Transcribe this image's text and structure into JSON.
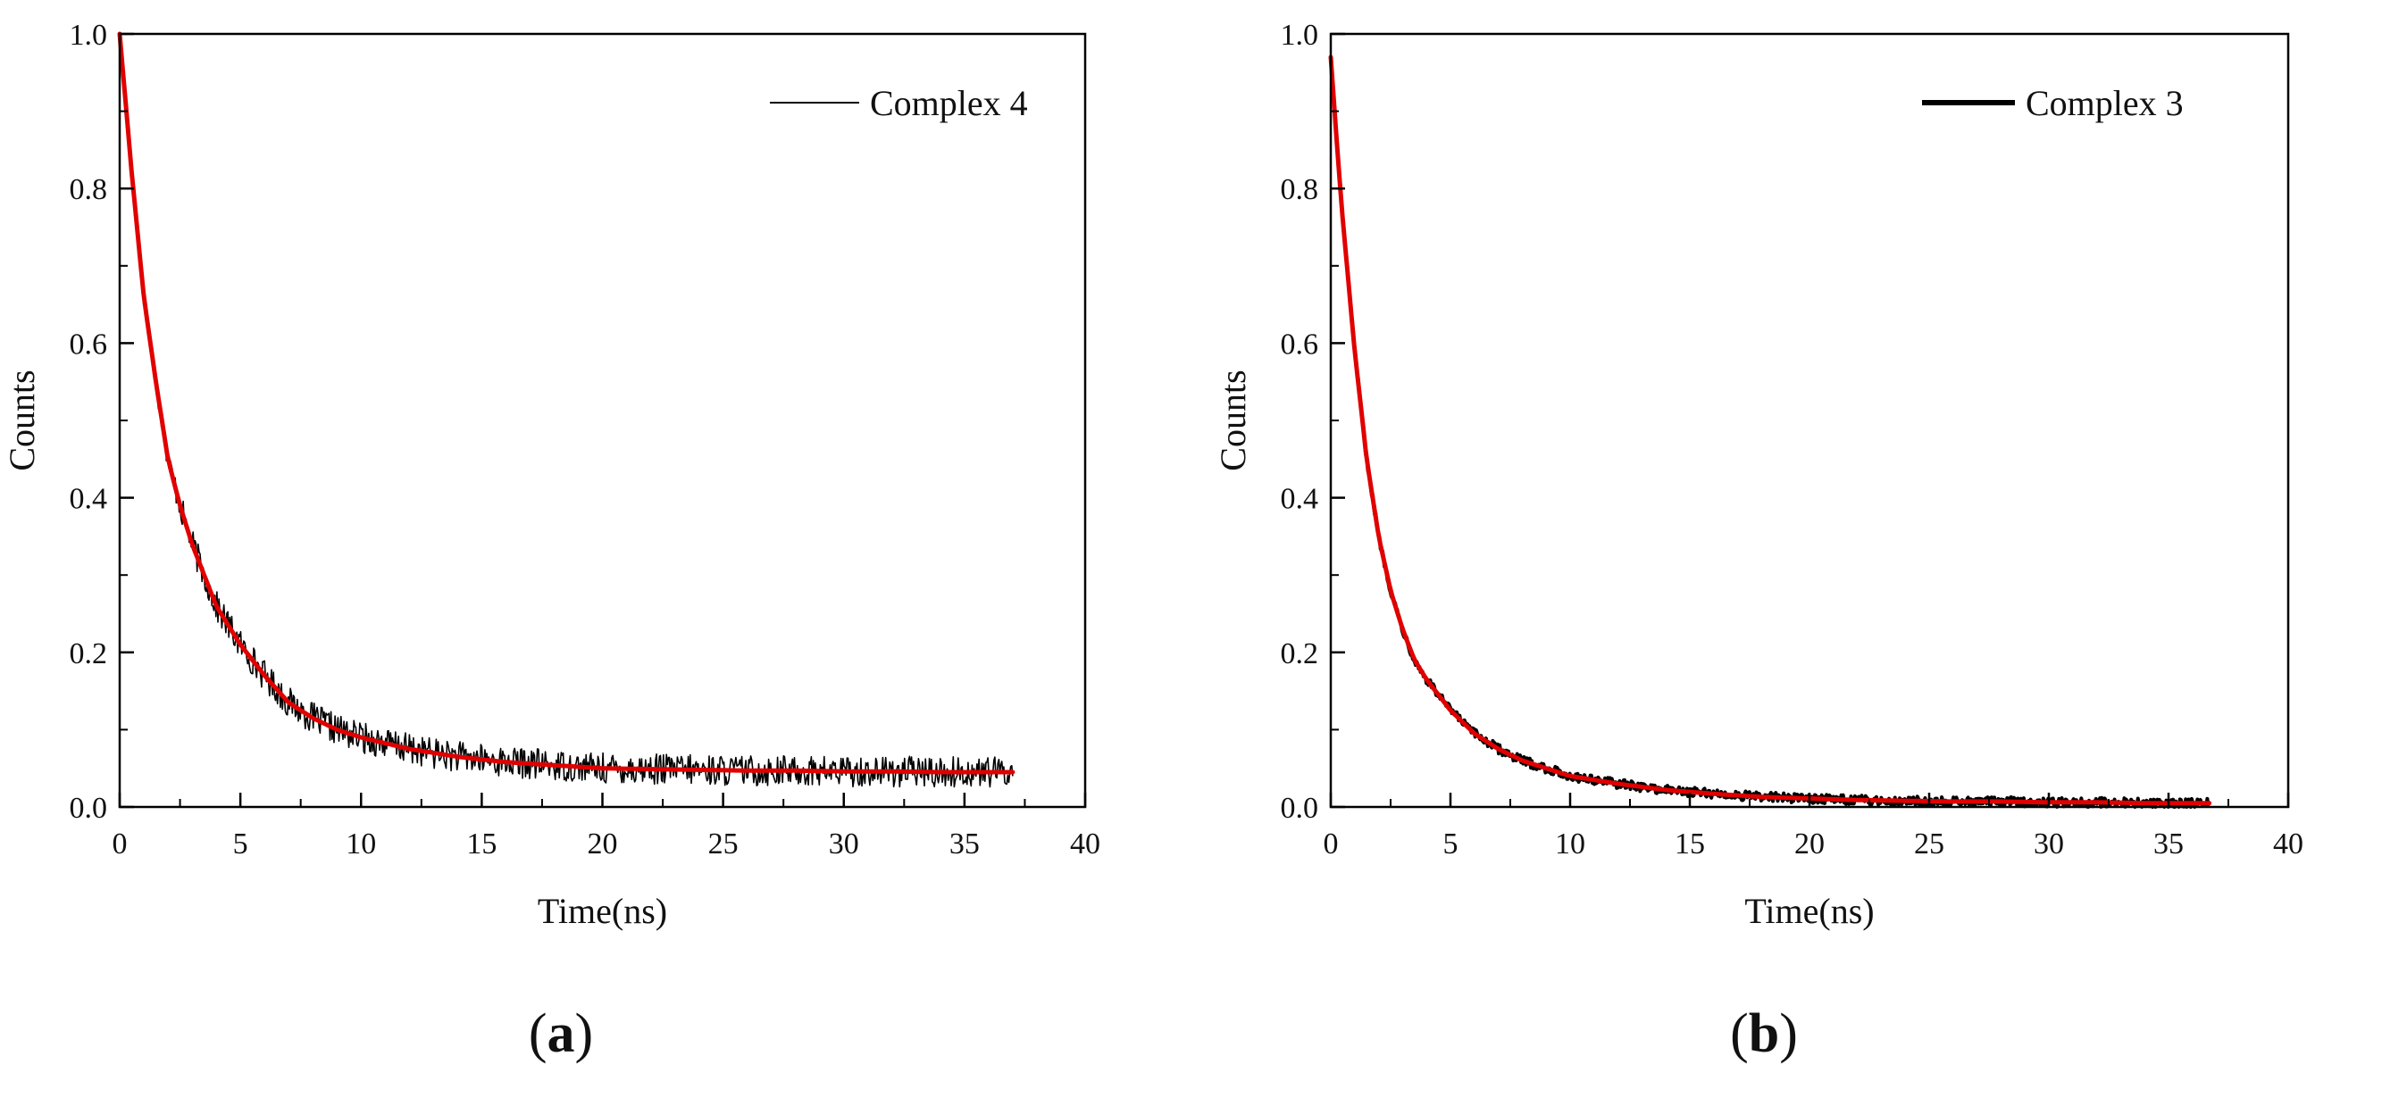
{
  "figure": {
    "colors": {
      "data": "#000000",
      "fit": "#e00000",
      "axes": "#000000"
    }
  },
  "chart_data": [
    {
      "type": "line",
      "panel_label": "a",
      "xlabel": "Time(ns)",
      "ylabel": "Counts",
      "xlim": [
        0,
        40
      ],
      "ylim": [
        0,
        1.0
      ],
      "xticks": [
        "0",
        "5",
        "10",
        "15",
        "20",
        "25",
        "30",
        "35",
        "40"
      ],
      "yticks": [
        "0.0",
        "0.2",
        "0.4",
        "0.6",
        "0.8",
        "1.0"
      ],
      "legend": {
        "position": "top-right",
        "entries": [
          "Complex 4"
        ]
      },
      "grid": false,
      "series": [
        {
          "name": "Complex 4",
          "kind": "measured",
          "x": [
            0,
            0.5,
            1,
            1.5,
            2,
            2.5,
            3,
            3.5,
            4,
            5,
            6,
            7,
            8,
            9,
            10,
            12,
            14,
            16,
            18,
            20,
            22,
            24,
            26,
            28,
            30,
            32,
            34,
            36,
            37
          ],
          "y": [
            1.0,
            0.82,
            0.66,
            0.55,
            0.45,
            0.39,
            0.34,
            0.3,
            0.26,
            0.21,
            0.17,
            0.135,
            0.115,
            0.1,
            0.09,
            0.075,
            0.065,
            0.058,
            0.054,
            0.05,
            0.049,
            0.048,
            0.047,
            0.047,
            0.046,
            0.046,
            0.045,
            0.045,
            0.045
          ],
          "noise": 0.02
        },
        {
          "kind": "fit",
          "x": [
            0,
            0.5,
            1,
            1.5,
            2,
            2.5,
            3,
            3.5,
            4,
            5,
            6,
            7,
            8,
            9,
            10,
            12,
            14,
            16,
            18,
            20,
            22,
            24,
            26,
            28,
            30,
            32,
            34,
            36,
            37
          ],
          "y": [
            1.0,
            0.82,
            0.66,
            0.55,
            0.45,
            0.39,
            0.34,
            0.3,
            0.26,
            0.21,
            0.17,
            0.135,
            0.115,
            0.1,
            0.09,
            0.075,
            0.065,
            0.058,
            0.054,
            0.05,
            0.049,
            0.048,
            0.047,
            0.047,
            0.046,
            0.046,
            0.045,
            0.045,
            0.045
          ]
        }
      ]
    },
    {
      "type": "line",
      "panel_label": "b",
      "xlabel": "Time(ns)",
      "ylabel": "Counts",
      "xlim": [
        0,
        40
      ],
      "ylim": [
        0,
        1.0
      ],
      "xticks": [
        "0",
        "5",
        "10",
        "15",
        "20",
        "25",
        "30",
        "35",
        "40"
      ],
      "yticks": [
        "0.0",
        "0.2",
        "0.4",
        "0.6",
        "0.8",
        "1.0"
      ],
      "legend": {
        "position": "top-right",
        "entries": [
          "Complex 3"
        ]
      },
      "grid": false,
      "series": [
        {
          "name": "Complex 3",
          "kind": "measured",
          "x": [
            0,
            0.25,
            0.5,
            1,
            1.5,
            2,
            2.5,
            3,
            3.5,
            4,
            5,
            6,
            7,
            8,
            9,
            10,
            12,
            14,
            16,
            18,
            20,
            22,
            24,
            26,
            28,
            30,
            32,
            34,
            36,
            36.7
          ],
          "y": [
            0.97,
            0.86,
            0.76,
            0.59,
            0.45,
            0.35,
            0.28,
            0.23,
            0.19,
            0.165,
            0.125,
            0.095,
            0.075,
            0.06,
            0.05,
            0.04,
            0.03,
            0.022,
            0.017,
            0.013,
            0.011,
            0.009,
            0.008,
            0.007,
            0.007,
            0.006,
            0.006,
            0.005,
            0.005,
            0.005
          ],
          "noise": 0.006
        },
        {
          "kind": "fit",
          "x": [
            0,
            0.25,
            0.5,
            1,
            1.5,
            2,
            2.5,
            3,
            3.5,
            4,
            5,
            6,
            7,
            8,
            9,
            10,
            12,
            14,
            16,
            18,
            20,
            22,
            24,
            26,
            28,
            30,
            32,
            34,
            36,
            36.7
          ],
          "y": [
            0.97,
            0.86,
            0.76,
            0.59,
            0.45,
            0.35,
            0.28,
            0.23,
            0.19,
            0.165,
            0.125,
            0.095,
            0.075,
            0.06,
            0.05,
            0.04,
            0.03,
            0.022,
            0.017,
            0.013,
            0.011,
            0.009,
            0.008,
            0.007,
            0.007,
            0.006,
            0.006,
            0.005,
            0.005,
            0.005
          ]
        }
      ]
    }
  ]
}
